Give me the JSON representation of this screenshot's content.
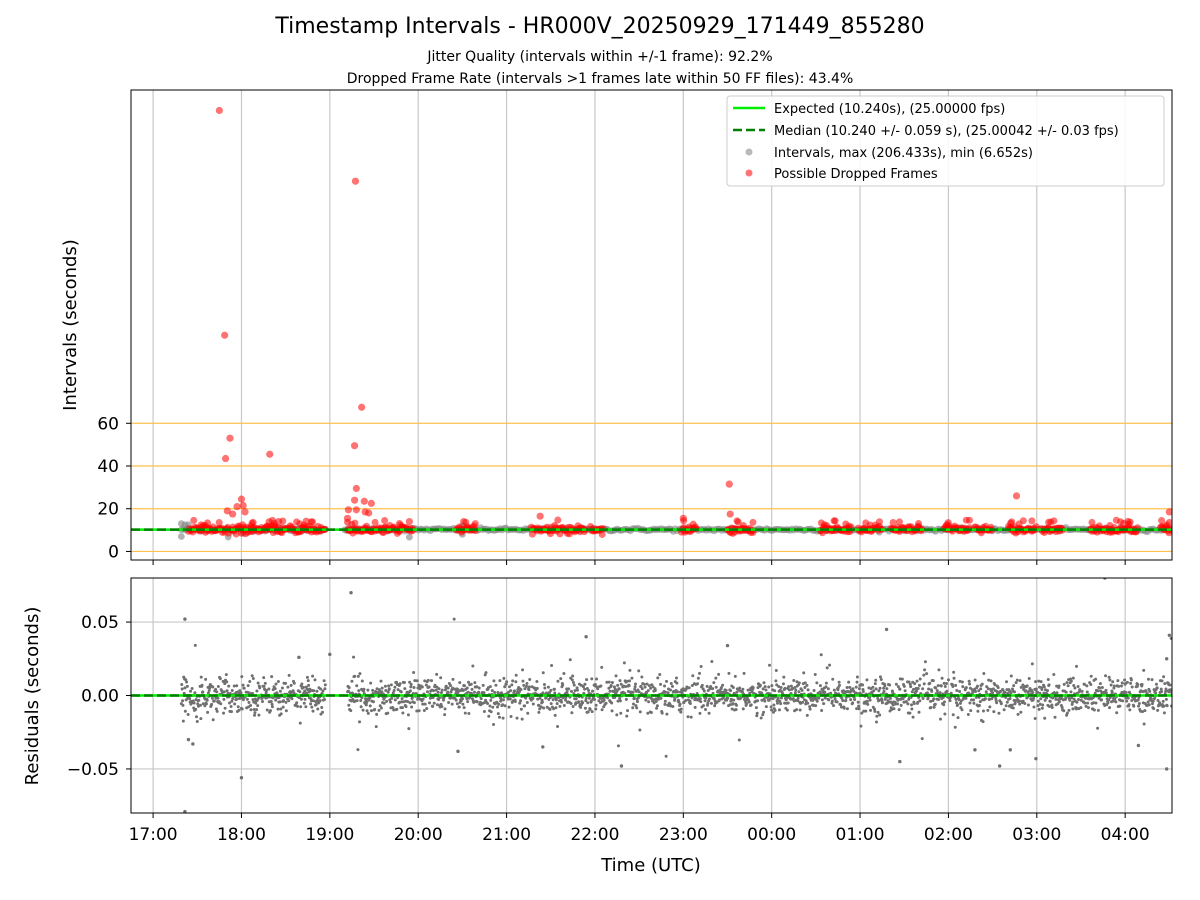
{
  "chart_data": [
    {
      "type": "scatter",
      "title": "Timestamp Intervals - HR000V_20250929_171449_855280",
      "subtitle_lines": [
        "Jitter Quality (intervals within +/-1 frame): 92.2%",
        "Dropped Frame Rate (intervals >1 frames late within 50 FF files): 43.4%"
      ],
      "xlabel": "",
      "ylabel": "Intervals (seconds)",
      "xlim_hours": [
        16.75,
        28.53
      ],
      "ylim": [
        -4,
        216
      ],
      "yticks": [
        0,
        20,
        40,
        60
      ],
      "ytick_labels": [
        "0",
        "20",
        "40",
        "60"
      ],
      "orange_reference_lines": [
        0,
        20,
        40,
        60
      ],
      "expected_value": 10.24,
      "median_value": 10.24,
      "legend_position": "top-right",
      "legend": [
        {
          "label": "Expected (10.240s), (25.00000 fps)",
          "style": "solid-line",
          "color": "#00ee00"
        },
        {
          "label": "Median (10.240 +/- 0.059 s), (25.00042 +/- 0.03 fps)",
          "style": "dashed-line",
          "color": "#008000"
        },
        {
          "label": "Intervals, max (206.433s), min (6.652s)",
          "style": "dot",
          "color": "#808080"
        },
        {
          "label": "Possible Dropped Frames",
          "style": "dot",
          "color": "#ff0000"
        }
      ],
      "dropped_frame_outliers": [
        {
          "t": 17.75,
          "v": 206.4
        },
        {
          "t": 17.81,
          "v": 101.2
        },
        {
          "t": 17.82,
          "v": 43.5
        },
        {
          "t": 17.87,
          "v": 53.0
        },
        {
          "t": 17.84,
          "v": 19.0
        },
        {
          "t": 17.9,
          "v": 17.5
        },
        {
          "t": 17.95,
          "v": 21.0
        },
        {
          "t": 18.0,
          "v": 24.5
        },
        {
          "t": 18.02,
          "v": 21.5
        },
        {
          "t": 18.04,
          "v": 18.5
        },
        {
          "t": 18.32,
          "v": 45.5
        },
        {
          "t": 18.35,
          "v": 14.5
        },
        {
          "t": 18.42,
          "v": 14.0
        },
        {
          "t": 19.29,
          "v": 173.3
        },
        {
          "t": 19.36,
          "v": 67.5
        },
        {
          "t": 19.28,
          "v": 49.5
        },
        {
          "t": 19.3,
          "v": 29.5
        },
        {
          "t": 19.28,
          "v": 24.0
        },
        {
          "t": 19.39,
          "v": 23.5
        },
        {
          "t": 19.47,
          "v": 22.5
        },
        {
          "t": 19.21,
          "v": 19.5
        },
        {
          "t": 19.3,
          "v": 19.5
        },
        {
          "t": 19.4,
          "v": 18.5
        },
        {
          "t": 19.44,
          "v": 18.0
        },
        {
          "t": 19.2,
          "v": 15.5
        },
        {
          "t": 19.9,
          "v": 14.0
        },
        {
          "t": 21.38,
          "v": 16.5
        },
        {
          "t": 23.0,
          "v": 15.5
        },
        {
          "t": 23.52,
          "v": 31.5
        },
        {
          "t": 23.53,
          "v": 17.5
        },
        {
          "t": 26.77,
          "v": 26.0
        },
        {
          "t": 28.5,
          "v": 18.5
        },
        {
          "t": 28.5,
          "v": 13.5
        }
      ],
      "dropped_frame_segments_hours": [
        [
          17.4,
          18.95
        ],
        [
          19.2,
          19.95
        ],
        [
          20.43,
          20.65
        ],
        [
          21.28,
          21.9
        ],
        [
          21.95,
          22.1
        ],
        [
          22.98,
          23.15
        ],
        [
          23.5,
          23.8
        ],
        [
          24.55,
          24.9
        ],
        [
          24.98,
          25.25
        ],
        [
          25.35,
          25.7
        ],
        [
          25.95,
          26.25
        ],
        [
          26.3,
          26.5
        ],
        [
          26.68,
          27.0
        ],
        [
          27.05,
          27.3
        ],
        [
          27.6,
          28.15
        ],
        [
          28.4,
          28.53
        ]
      ],
      "gray_interval_notes": [
        {
          "t": 17.32,
          "v": 13.0
        },
        {
          "t": 17.32,
          "v": 7.0
        },
        {
          "t": 17.36,
          "v": 12.5
        },
        {
          "t": 17.4,
          "v": 12.5
        },
        {
          "t": 17.85,
          "v": 6.8
        },
        {
          "t": 18.02,
          "v": 8.5
        },
        {
          "t": 19.9,
          "v": 6.7
        },
        {
          "t": 20.5,
          "v": 8.0
        },
        {
          "t": 20.5,
          "v": 12.0
        }
      ]
    },
    {
      "type": "scatter",
      "title": "",
      "xlabel": "Time (UTC)",
      "ylabel": "Residuals (seconds)",
      "xlim_hours": [
        16.75,
        28.53
      ],
      "ylim": [
        -0.08,
        0.08
      ],
      "yticks": [
        0.05,
        0.0,
        -0.05
      ],
      "ytick_labels": [
        "0.05",
        "0.00",
        "−0.05"
      ],
      "xticks_hours": [
        17,
        18,
        19,
        20,
        21,
        22,
        23,
        24,
        25,
        26,
        27,
        28
      ],
      "xtick_labels": [
        "17:00",
        "18:00",
        "19:00",
        "20:00",
        "21:00",
        "22:00",
        "23:00",
        "00:00",
        "01:00",
        "02:00",
        "03:00",
        "04:00"
      ],
      "zero_line": 0,
      "data_gaps_hours": [
        [
          18.95,
          19.2
        ]
      ],
      "typical_spread": 0.006,
      "residual_outliers": [
        {
          "t": 17.36,
          "v": 0.052
        },
        {
          "t": 19.24,
          "v": 0.07
        },
        {
          "t": 17.36,
          "v": -0.079
        },
        {
          "t": 18.0,
          "v": -0.056
        },
        {
          "t": 21.41,
          "v": -0.035
        },
        {
          "t": 22.3,
          "v": -0.048
        },
        {
          "t": 21.9,
          "v": 0.04
        },
        {
          "t": 25.3,
          "v": 0.045
        },
        {
          "t": 25.45,
          "v": -0.045
        },
        {
          "t": 26.58,
          "v": -0.048
        },
        {
          "t": 26.3,
          "v": -0.037
        },
        {
          "t": 26.7,
          "v": -0.037
        },
        {
          "t": 26.99,
          "v": -0.043
        },
        {
          "t": 27.77,
          "v": 0.08
        },
        {
          "t": 28.47,
          "v": -0.05
        },
        {
          "t": 28.5,
          "v": 0.041
        },
        {
          "t": 28.47,
          "v": 0.025
        },
        {
          "t": 19.0,
          "v": 0.028
        },
        {
          "t": 20.45,
          "v": -0.038
        },
        {
          "t": 23.5,
          "v": 0.034
        },
        {
          "t": 17.4,
          "v": -0.03
        },
        {
          "t": 17.45,
          "v": -0.033
        },
        {
          "t": 18.65,
          "v": 0.026
        },
        {
          "t": 28.15,
          "v": -0.034
        }
      ]
    }
  ]
}
